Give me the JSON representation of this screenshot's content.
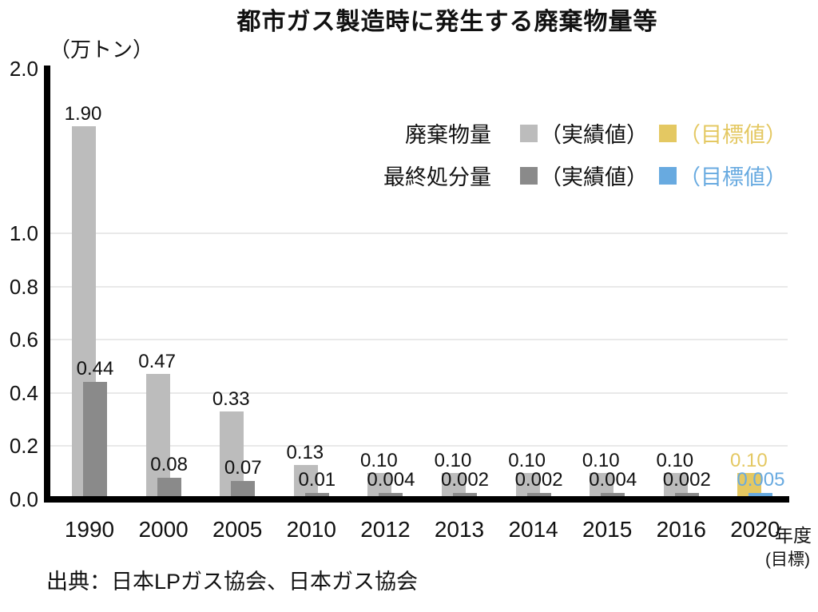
{
  "title": "都市ガス製造時に発生する廃棄物量等",
  "y_axis": {
    "unit_label": "（万トン）",
    "ticks": [
      "2.0",
      "1.0",
      "0.8",
      "0.6",
      "0.4",
      "0.2",
      "0.0"
    ]
  },
  "x_axis": {
    "unit_label": "年度",
    "target_note": "(目標)"
  },
  "legend": {
    "rows": [
      {
        "name": "廃棄物量",
        "actual_label": "（実績値）",
        "target_label": "（目標値）",
        "actual_color": "#bcbcbc",
        "target_color": "#e4c862"
      },
      {
        "name": "最終処分量",
        "actual_label": "（実績値）",
        "target_label": "（目標値）",
        "actual_color": "#8a8a8a",
        "target_color": "#68aae0"
      }
    ]
  },
  "source": "出典：日本LPガス協会、日本ガス協会",
  "chart_data": {
    "type": "bar",
    "title": "都市ガス製造時に発生する廃棄物量等",
    "ylabel": "（万トン）",
    "xlabel": "年度",
    "ylim": [
      0,
      2.0
    ],
    "axis_break_above": 1.0,
    "grid": true,
    "legend_position": "top-right",
    "categories": [
      "1990",
      "2000",
      "2005",
      "2010",
      "2012",
      "2013",
      "2014",
      "2015",
      "2016",
      "2020"
    ],
    "target_category": "2020",
    "series": [
      {
        "name": "廃棄物量",
        "values": [
          1.9,
          0.47,
          0.33,
          0.13,
          0.1,
          0.1,
          0.1,
          0.1,
          0.1,
          0.1
        ],
        "labels": [
          "1.90",
          "0.47",
          "0.33",
          "0.13",
          "0.10",
          "0.10",
          "0.10",
          "0.10",
          "0.10",
          "0.10"
        ]
      },
      {
        "name": "最終処分量",
        "values": [
          0.44,
          0.08,
          0.07,
          0.01,
          0.004,
          0.002,
          0.002,
          0.004,
          0.002,
          0.005
        ],
        "labels": [
          "0.44",
          "0.08",
          "0.07",
          "0.01",
          "0.004",
          "0.002",
          "0.002",
          "0.004",
          "0.002",
          "0.005"
        ]
      }
    ],
    "colors": {
      "waste_actual": "#bcbcbc",
      "waste_target": "#e4c862",
      "final_actual": "#8a8a8a",
      "final_target": "#68aae0",
      "gridline": "#e9e9e9",
      "axis": "#000000"
    }
  }
}
